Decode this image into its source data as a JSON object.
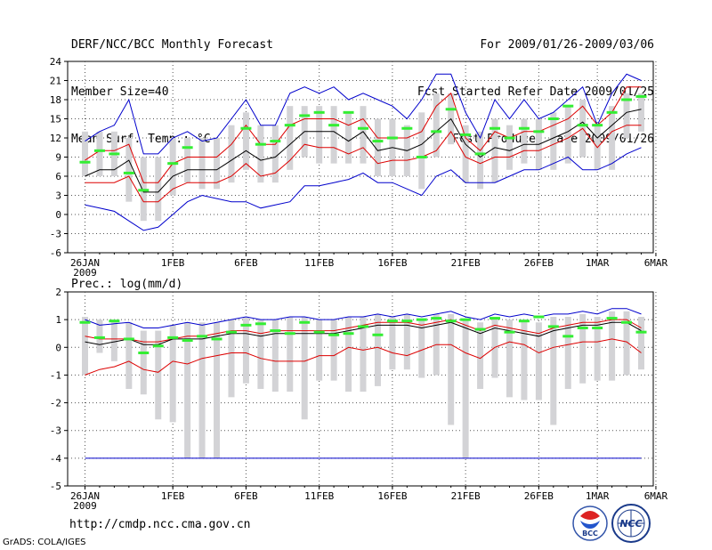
{
  "header": {
    "left": [
      "DERF/NCC/BCC Monthly Forecast",
      "Member Size=40",
      "Mean Surf. Temp.: °C"
    ],
    "right": [
      "For 2009/01/26-2009/03/06",
      "Fcst Started Refer Date 2009/01/25",
      "Fcst Produced Date 2009/01/26"
    ]
  },
  "footer": {
    "url": "http://cmdp.ncc.cma.gov.cn",
    "credit": "GrADS: COLA/IGES"
  },
  "logos": {
    "bcc_label": "BCC",
    "ncc_label": "NCC"
  },
  "colors": {
    "gray_bar": "#d3d3d6",
    "obs": "#33ee33",
    "mean": "#000000",
    "quartile": "#dd0000",
    "extreme": "#0000cc",
    "grid": "#555555"
  },
  "chart_data": [
    {
      "type": "box",
      "title": "Mean Surf. Temp.: °C",
      "ylim": [
        -6,
        24
      ],
      "yticks": [
        -6,
        -3,
        0,
        3,
        6,
        9,
        12,
        15,
        18,
        21,
        24
      ],
      "xtick_days": [
        0,
        6,
        11,
        16,
        21,
        26,
        31,
        35,
        39
      ],
      "xtick_labels": [
        "26JAN",
        "1FEB",
        "6FEB",
        "11FEB",
        "16FEB",
        "21FEB",
        "26FEB",
        "1MAR",
        "6MAR"
      ],
      "xtick_sublabel": "2009",
      "max": [
        11.5,
        13,
        14,
        18,
        9.5,
        9.5,
        12,
        13,
        11.5,
        12,
        15,
        18,
        14,
        14,
        19,
        20,
        19,
        20,
        18,
        19,
        18,
        17,
        15,
        18,
        22,
        22,
        16,
        12,
        18,
        15,
        18,
        15,
        16,
        18,
        20,
        14,
        19,
        22,
        21
      ],
      "q75": [
        8.5,
        10,
        10,
        11,
        5,
        5,
        8,
        9,
        9,
        9,
        11,
        14,
        11,
        11,
        14,
        15,
        15,
        15,
        14,
        15,
        12,
        12,
        12,
        13,
        17,
        19,
        12,
        10,
        13,
        12,
        13,
        13,
        14,
        15,
        17,
        14,
        16,
        20,
        20
      ],
      "mean": [
        6,
        7,
        7,
        8.5,
        3.5,
        3.5,
        6,
        7,
        7,
        7,
        8.5,
        10,
        8.5,
        9,
        11,
        13,
        13,
        13,
        11.5,
        13,
        10,
        10.5,
        10,
        11,
        13,
        15,
        11,
        9,
        10.5,
        10,
        11,
        11,
        12,
        13,
        14.5,
        12,
        14,
        16,
        16.5
      ],
      "q25": [
        5,
        5,
        5,
        6,
        2,
        2,
        4,
        5,
        5,
        5,
        6,
        8,
        6,
        6.5,
        8.5,
        11,
        10.5,
        10.5,
        9.5,
        10.5,
        8,
        8.5,
        8.5,
        9,
        10,
        13,
        9,
        8,
        9,
        9,
        10,
        10,
        11,
        12,
        13.5,
        10.5,
        13,
        14,
        14
      ],
      "min": [
        1.5,
        1,
        0.5,
        -1,
        -2.5,
        -2,
        0,
        2,
        3,
        2.5,
        2,
        2,
        1,
        1.5,
        2,
        4.5,
        4.5,
        5,
        5.5,
        6.5,
        5,
        5,
        4,
        3,
        6,
        7,
        5,
        5,
        5,
        6,
        7,
        7,
        8,
        9,
        7,
        7,
        8,
        9.5,
        10.5
      ],
      "bar_top": [
        13,
        13,
        13,
        12,
        9,
        9,
        12,
        12,
        12,
        12,
        14,
        16,
        14,
        14,
        17,
        17,
        17,
        17,
        16,
        17,
        15,
        15,
        14,
        16,
        19,
        19,
        14,
        13,
        15,
        14,
        15,
        15,
        16,
        17,
        18,
        14,
        17,
        19,
        19
      ],
      "bar_bottom": [
        6,
        6,
        6,
        2,
        -1,
        -1,
        3,
        5,
        4,
        4,
        5,
        7,
        5,
        5,
        7,
        9,
        8,
        8,
        8,
        8,
        6,
        6,
        6,
        4,
        9,
        11,
        5,
        4,
        5,
        7,
        8,
        7,
        7,
        8,
        9,
        7,
        7,
        12,
        13
      ],
      "obs": [
        8.2,
        10,
        9.5,
        6.5,
        3.8,
        null,
        8,
        10.5,
        null,
        null,
        null,
        13.5,
        11,
        11.5,
        14,
        15.5,
        16,
        14,
        16,
        13.5,
        11.5,
        12,
        13.5,
        9,
        13,
        16.5,
        12.5,
        9.5,
        13.5,
        12,
        13.5,
        13,
        15,
        17,
        14,
        14,
        16,
        18,
        18.5
      ]
    },
    {
      "type": "box",
      "title": "Prec.: log(mm/d)",
      "ylim": [
        -5,
        2
      ],
      "yticks": [
        -5,
        -4,
        -3,
        -2,
        -1,
        0,
        1,
        2
      ],
      "xtick_days": [
        0,
        6,
        11,
        16,
        21,
        26,
        31,
        35,
        39
      ],
      "xtick_labels": [
        "26JAN",
        "1FEB",
        "6FEB",
        "11FEB",
        "16FEB",
        "21FEB",
        "26FEB",
        "1MAR",
        "6MAR"
      ],
      "xtick_sublabel": "2009",
      "max": [
        1,
        0.8,
        0.85,
        0.9,
        0.7,
        0.7,
        0.8,
        0.9,
        0.8,
        0.9,
        1,
        1.1,
        1,
        1,
        1.1,
        1.1,
        1,
        1,
        1.1,
        1.1,
        1.2,
        1.1,
        1.2,
        1.1,
        1.2,
        1.3,
        1.1,
        1,
        1.2,
        1.1,
        1.2,
        1.1,
        1.2,
        1.2,
        1.3,
        1.2,
        1.4,
        1.4,
        1.2
      ],
      "q75": [
        0.4,
        0.3,
        0.3,
        0.3,
        0.2,
        0.2,
        0.3,
        0.4,
        0.4,
        0.5,
        0.6,
        0.6,
        0.5,
        0.6,
        0.6,
        0.6,
        0.6,
        0.6,
        0.7,
        0.8,
        0.9,
        0.9,
        0.9,
        0.8,
        0.9,
        1,
        0.8,
        0.6,
        0.8,
        0.7,
        0.6,
        0.5,
        0.7,
        0.8,
        0.9,
        0.9,
        1,
        1,
        0.7
      ],
      "mean": [
        0.2,
        0.1,
        0.2,
        0.3,
        0.1,
        0.1,
        0.3,
        0.3,
        0.3,
        0.4,
        0.5,
        0.5,
        0.4,
        0.5,
        0.5,
        0.5,
        0.5,
        0.5,
        0.6,
        0.7,
        0.8,
        0.8,
        0.8,
        0.7,
        0.8,
        0.9,
        0.7,
        0.5,
        0.7,
        0.6,
        0.5,
        0.4,
        0.6,
        0.7,
        0.8,
        0.8,
        0.9,
        0.9,
        0.6
      ],
      "q25": [
        -1,
        -0.8,
        -0.7,
        -0.5,
        -0.8,
        -0.9,
        -0.5,
        -0.6,
        -0.4,
        -0.3,
        -0.2,
        -0.2,
        -0.4,
        -0.5,
        -0.5,
        -0.5,
        -0.3,
        -0.3,
        0,
        -0.1,
        0,
        -0.2,
        -0.3,
        -0.1,
        0.1,
        0.1,
        -0.2,
        -0.4,
        0,
        0.2,
        0.1,
        -0.2,
        0,
        0.1,
        0.2,
        0.2,
        0.3,
        0.2,
        -0.2
      ],
      "min": [
        -4,
        -4,
        -4,
        -4,
        -4,
        -4,
        -4,
        -4,
        -4,
        -4,
        -4,
        -4,
        -4,
        -4,
        -4,
        -4,
        -4,
        -4,
        -4,
        -4,
        -4,
        -4,
        -4,
        -4,
        -4,
        -4,
        -4,
        -4,
        -4,
        -4,
        -4,
        -4,
        -4,
        -4,
        -4,
        -4,
        -4,
        -4,
        -4
      ],
      "bar_top": [
        1.1,
        1,
        1,
        0.9,
        0.6,
        0.6,
        0.8,
        0.9,
        0.9,
        0.9,
        1,
        1.1,
        1,
        1,
        1.1,
        1.1,
        1,
        1,
        1.1,
        1.1,
        1.2,
        1.1,
        1.2,
        1,
        1.2,
        1.2,
        1,
        0.9,
        1.1,
        1,
        1,
        0.9,
        1.1,
        1.1,
        1.2,
        1.1,
        1.3,
        1.3,
        1.1
      ],
      "bar_bottom": [
        -1,
        -0.2,
        -0.5,
        -1.5,
        -1.7,
        -2.6,
        -2.7,
        -4,
        -4,
        -4,
        -1.8,
        -1.3,
        -1.5,
        -1.6,
        -1.6,
        -2.6,
        -1.2,
        -1.2,
        -1.6,
        -1.6,
        -1.4,
        -0.8,
        -0.8,
        -1.1,
        -1,
        -2.8,
        -4,
        -1.5,
        -1.1,
        -1.8,
        -1.9,
        -1.9,
        -2.8,
        -1.5,
        -1.3,
        -1.2,
        -1.2,
        -1,
        -0.8
      ],
      "obs": [
        0.9,
        0.35,
        0.95,
        0.3,
        -0.2,
        0.05,
        0.35,
        0.25,
        0.4,
        0.3,
        0.55,
        0.8,
        0.85,
        0.6,
        0.5,
        0.9,
        0.55,
        0.45,
        0.5,
        0.75,
        0.45,
        0.95,
        0.95,
        1,
        1.05,
        0.95,
        1,
        0.65,
        1.05,
        0.55,
        0.95,
        1.1,
        0.75,
        0.4,
        0.7,
        0.7,
        1.05,
        0.9,
        0.55
      ]
    }
  ]
}
